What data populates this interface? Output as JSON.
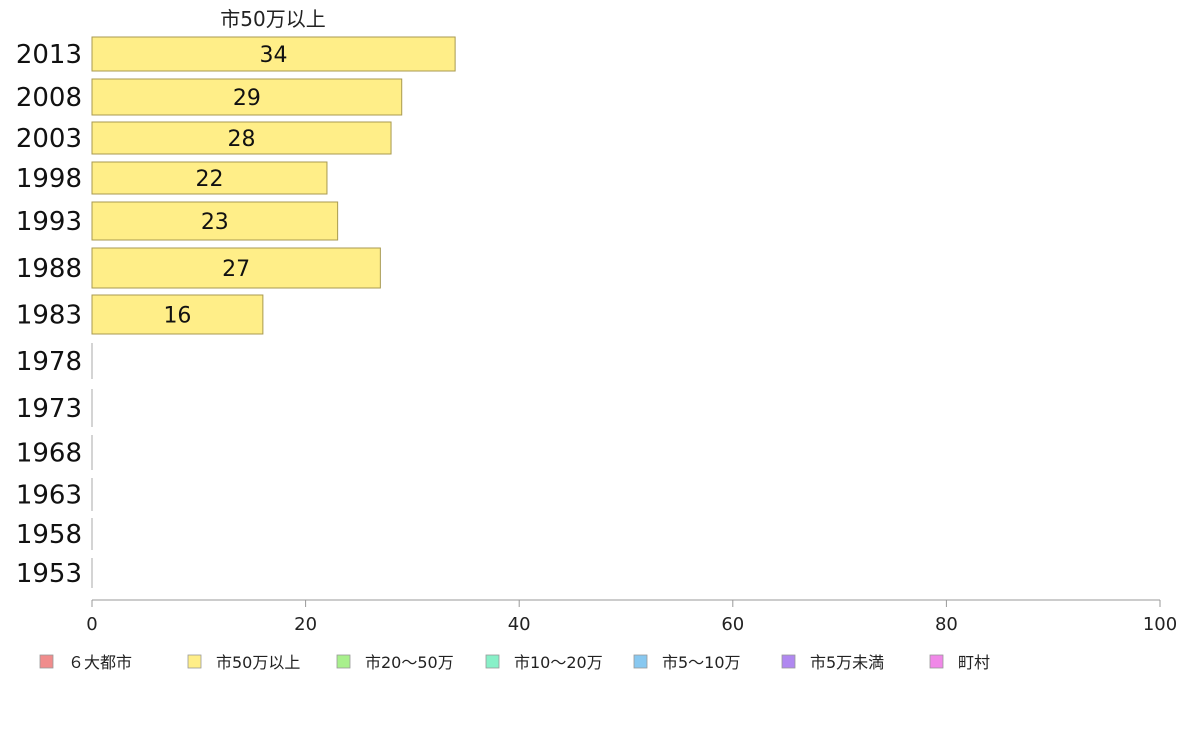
{
  "chart_data": {
    "type": "bar",
    "orientation": "horizontal",
    "stacked": true,
    "title": "",
    "series_label": "市50万以上",
    "xlabel": "",
    "ylabel": "",
    "xlim": [
      0,
      100
    ],
    "xticks": [
      0,
      20,
      40,
      60,
      80,
      100
    ],
    "grid": false,
    "legend_position": "bottom",
    "categories": [
      "2013",
      "2008",
      "2003",
      "1998",
      "1993",
      "1988",
      "1983",
      "1978",
      "1973",
      "1968",
      "1963",
      "1958",
      "1953"
    ],
    "series": [
      {
        "name": "６大都市",
        "color": "#f08c8c",
        "values": [
          0,
          0,
          0,
          0,
          0,
          0,
          0,
          0,
          0,
          0,
          0,
          0,
          0
        ]
      },
      {
        "name": "市50万以上",
        "color": "#ffee88",
        "values": [
          34,
          29,
          28,
          22,
          23,
          27,
          16,
          0,
          0,
          0,
          0,
          0,
          0
        ],
        "labels": [
          "34",
          "29",
          "28",
          "22",
          "23",
          "27",
          "16",
          "",
          "",
          "",
          "",
          "",
          ""
        ]
      },
      {
        "name": "市20〜50万",
        "color": "#a8f08c",
        "values": [
          0,
          0,
          0,
          0,
          0,
          0,
          0,
          0,
          0,
          0,
          0,
          0,
          0
        ]
      },
      {
        "name": "市10〜20万",
        "color": "#88f0c8",
        "values": [
          0,
          0,
          0,
          0,
          0,
          0,
          0,
          0,
          0,
          0,
          0,
          0,
          0
        ]
      },
      {
        "name": "市5〜10万",
        "color": "#88c8f0",
        "values": [
          0,
          0,
          0,
          0,
          0,
          0,
          0,
          0,
          0,
          0,
          0,
          0,
          0
        ]
      },
      {
        "name": "市5万未満",
        "color": "#b088f0",
        "values": [
          0,
          0,
          0,
          0,
          0,
          0,
          0,
          0,
          0,
          0,
          0,
          0,
          0
        ]
      },
      {
        "name": "町村",
        "color": "#f088e8",
        "values": [
          0,
          0,
          0,
          0,
          0,
          0,
          0,
          0,
          0,
          0,
          0,
          0,
          0
        ]
      }
    ]
  }
}
